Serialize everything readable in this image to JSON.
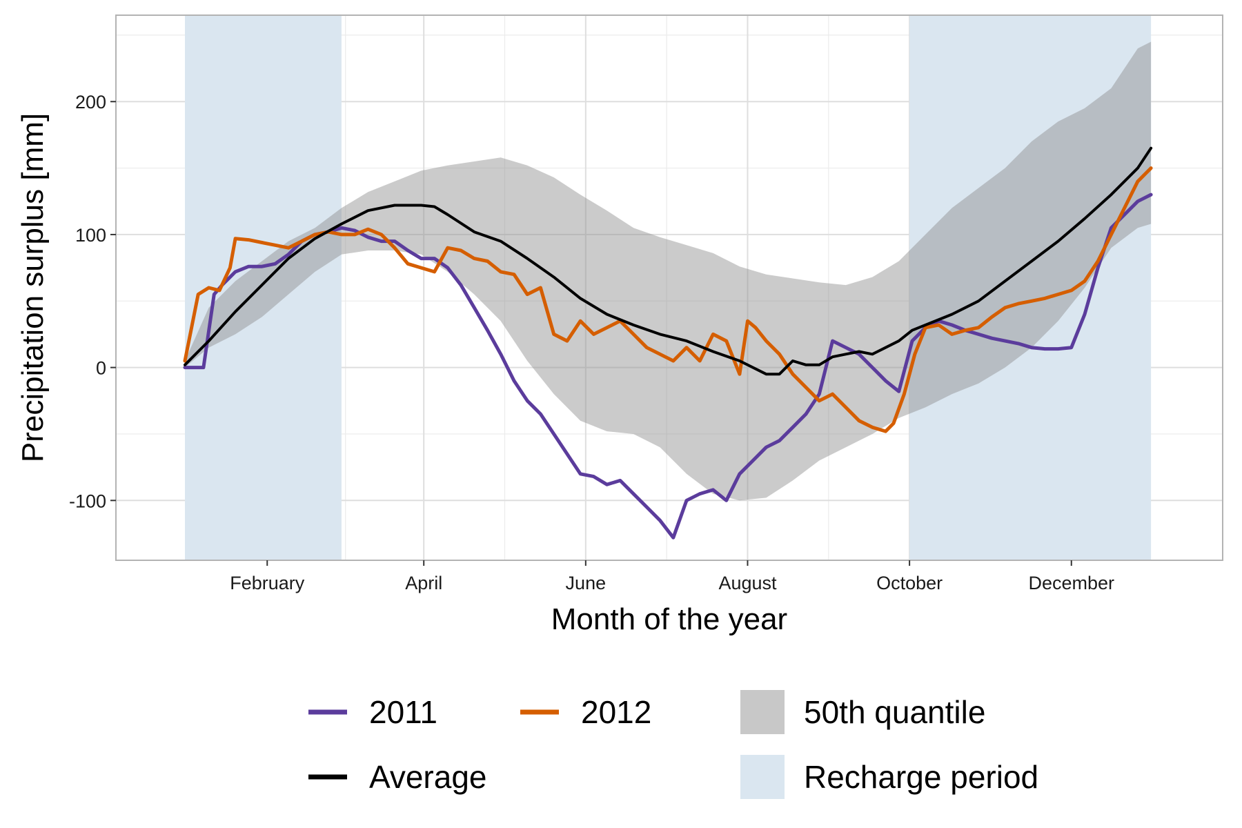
{
  "chart_data": {
    "type": "line",
    "title": "",
    "xlabel": "Month of the year",
    "ylabel": "Precipitation surplus [mm]",
    "x_unit": "day of year",
    "xlim": [
      1,
      365
    ],
    "ylim": [
      -145,
      265
    ],
    "grid": true,
    "x_tick_labels": [
      "February",
      "April",
      "June",
      "August",
      "October",
      "December"
    ],
    "x_tick_days": [
      32,
      91,
      152,
      213,
      274,
      335
    ],
    "y_ticks": [
      -100,
      0,
      100,
      200
    ],
    "y_tick_labels": [
      "-100",
      "0",
      "100",
      "200"
    ],
    "recharge_periods": [
      [
        1,
        60
      ],
      [
        274,
        365
      ]
    ],
    "band_x": [
      1,
      10,
      20,
      30,
      40,
      50,
      60,
      70,
      80,
      90,
      100,
      110,
      120,
      130,
      140,
      150,
      160,
      170,
      180,
      190,
      200,
      210,
      220,
      230,
      240,
      250,
      260,
      270,
      280,
      290,
      300,
      310,
      320,
      330,
      340,
      350,
      360,
      365
    ],
    "band_upper": [
      5,
      45,
      65,
      80,
      95,
      105,
      120,
      132,
      140,
      148,
      152,
      155,
      158,
      152,
      143,
      130,
      118,
      105,
      98,
      92,
      86,
      76,
      70,
      67,
      64,
      62,
      68,
      80,
      100,
      120,
      135,
      150,
      170,
      185,
      195,
      210,
      240,
      245
    ],
    "band_lower": [
      0,
      15,
      25,
      38,
      55,
      72,
      85,
      88,
      88,
      85,
      72,
      55,
      35,
      5,
      -20,
      -40,
      -48,
      -50,
      -60,
      -80,
      -95,
      -100,
      -98,
      -85,
      -70,
      -60,
      -50,
      -38,
      -30,
      -20,
      -12,
      0,
      15,
      35,
      60,
      90,
      105,
      108
    ],
    "series": [
      {
        "name": "2011",
        "x": [
          1,
          5,
          8,
          12,
          15,
          20,
          25,
          30,
          35,
          40,
          45,
          50,
          55,
          60,
          65,
          70,
          75,
          80,
          85,
          90,
          95,
          100,
          105,
          110,
          115,
          120,
          125,
          130,
          135,
          140,
          145,
          150,
          155,
          160,
          165,
          170,
          175,
          180,
          185,
          190,
          195,
          200,
          205,
          210,
          215,
          220,
          225,
          230,
          235,
          240,
          245,
          250,
          255,
          260,
          265,
          270,
          275,
          280,
          285,
          290,
          295,
          300,
          305,
          310,
          315,
          320,
          325,
          330,
          335,
          340,
          345,
          350,
          355,
          360,
          365
        ],
        "y": [
          0,
          0,
          0,
          55,
          62,
          72,
          76,
          76,
          78,
          85,
          95,
          100,
          102,
          105,
          103,
          98,
          95,
          95,
          88,
          82,
          82,
          75,
          62,
          45,
          28,
          10,
          -10,
          -25,
          -35,
          -50,
          -65,
          -80,
          -82,
          -88,
          -85,
          -95,
          -105,
          -115,
          -128,
          -100,
          -95,
          -92,
          -100,
          -80,
          -70,
          -60,
          -55,
          -45,
          -35,
          -20,
          20,
          15,
          10,
          0,
          -10,
          -18,
          20,
          30,
          35,
          32,
          28,
          25,
          22,
          20,
          18,
          15,
          14,
          14,
          15,
          40,
          75,
          105,
          115,
          125,
          130
        ],
        "color": "#5b3c9c"
      },
      {
        "name": "2012",
        "x": [
          1,
          3,
          6,
          10,
          14,
          18,
          20,
          25,
          30,
          35,
          40,
          45,
          50,
          55,
          60,
          65,
          70,
          75,
          80,
          85,
          90,
          95,
          100,
          105,
          110,
          115,
          120,
          125,
          130,
          135,
          140,
          145,
          150,
          155,
          160,
          165,
          170,
          175,
          180,
          185,
          190,
          195,
          200,
          205,
          210,
          213,
          216,
          220,
          225,
          230,
          235,
          240,
          245,
          250,
          255,
          260,
          265,
          268,
          272,
          276,
          280,
          285,
          290,
          295,
          300,
          305,
          310,
          315,
          320,
          325,
          330,
          335,
          340,
          345,
          350,
          355,
          360,
          365
        ],
        "y": [
          5,
          25,
          55,
          60,
          58,
          75,
          97,
          96,
          94,
          92,
          90,
          95,
          100,
          102,
          100,
          100,
          104,
          100,
          90,
          78,
          75,
          72,
          90,
          88,
          82,
          80,
          72,
          70,
          55,
          60,
          25,
          20,
          35,
          25,
          30,
          35,
          25,
          15,
          10,
          5,
          15,
          5,
          25,
          20,
          -5,
          35,
          30,
          20,
          10,
          -5,
          -15,
          -25,
          -20,
          -30,
          -40,
          -45,
          -48,
          -42,
          -20,
          10,
          30,
          32,
          25,
          28,
          30,
          38,
          45,
          48,
          50,
          52,
          55,
          58,
          65,
          80,
          100,
          120,
          140,
          150
        ],
        "color": "#d55e00"
      },
      {
        "name": "Average",
        "x": [
          1,
          10,
          20,
          30,
          40,
          50,
          60,
          70,
          80,
          90,
          95,
          100,
          110,
          120,
          130,
          140,
          150,
          160,
          170,
          180,
          190,
          200,
          210,
          220,
          225,
          230,
          235,
          240,
          245,
          250,
          255,
          260,
          265,
          270,
          275,
          280,
          290,
          300,
          310,
          320,
          330,
          340,
          350,
          360,
          365
        ],
        "y": [
          2,
          20,
          42,
          62,
          82,
          97,
          108,
          118,
          122,
          122,
          121,
          115,
          102,
          95,
          82,
          68,
          52,
          40,
          32,
          25,
          20,
          12,
          5,
          -5,
          -5,
          5,
          2,
          2,
          8,
          10,
          12,
          10,
          15,
          20,
          28,
          32,
          40,
          50,
          65,
          80,
          95,
          112,
          130,
          150,
          165
        ],
        "color": "#000000"
      }
    ],
    "legend": {
      "position": "bottom",
      "items": [
        {
          "label": "2011",
          "kind": "line",
          "color": "#5b3c9c"
        },
        {
          "label": "2012",
          "kind": "line",
          "color": "#d55e00"
        },
        {
          "label": "Average",
          "kind": "line",
          "color": "#000000"
        },
        {
          "label": "50th quantile",
          "kind": "fill",
          "color": "#c8c8c8"
        },
        {
          "label": "Recharge period",
          "kind": "fill",
          "color": "#dae6f0"
        }
      ]
    }
  }
}
